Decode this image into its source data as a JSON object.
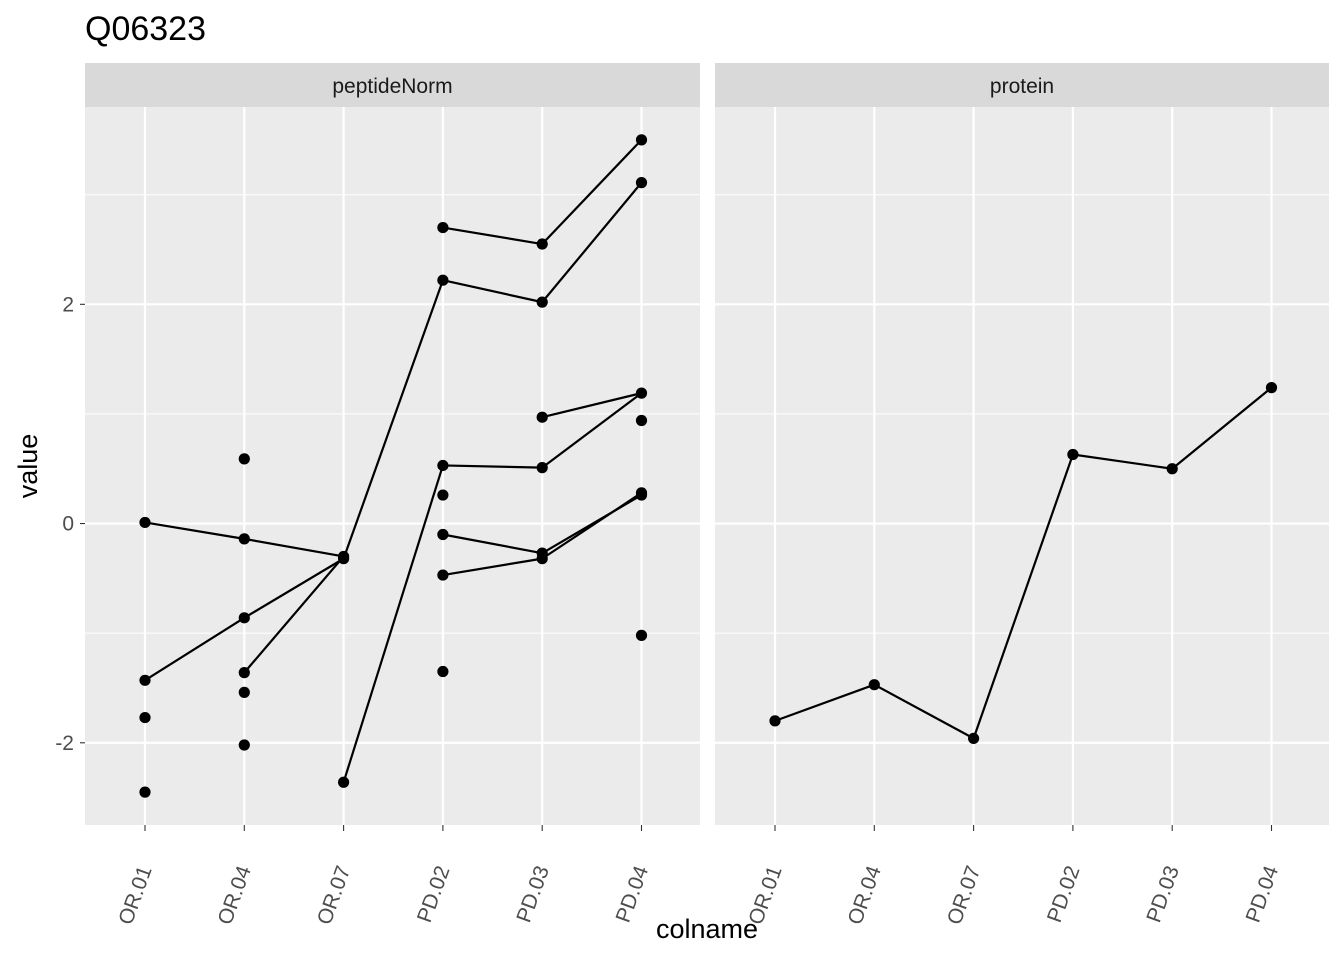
{
  "chart_data": {
    "type": "line",
    "title": "Q06323",
    "xlabel": "colname",
    "ylabel": "value",
    "categories": [
      "OR.01",
      "OR.04",
      "OR.07",
      "PD.02",
      "PD.03",
      "PD.04"
    ],
    "ylim": [
      -2.75,
      3.8
    ],
    "yticks": [
      -2,
      0,
      2
    ],
    "ytick_labels": [
      "-2",
      "0",
      "2"
    ],
    "grid": true,
    "colors": {
      "panel_bg": "#EBEBEB",
      "strip_bg": "#D9D9D9",
      "grid": "#FFFFFF",
      "series": "#000000",
      "tick": "#333333"
    },
    "panels": [
      {
        "label": "peptideNorm",
        "series": [
          {
            "values": [
              null,
              null,
              null,
              2.7,
              2.55,
              3.5
            ]
          },
          {
            "values": [
              null,
              null,
              null,
              2.22,
              2.02,
              3.11
            ]
          },
          {
            "values": [
              null,
              null,
              null,
              null,
              0.97,
              1.19
            ]
          },
          {
            "values": [
              null,
              null,
              null,
              0.53,
              0.51,
              1.19
            ]
          },
          {
            "values": [
              null,
              null,
              null,
              -0.1,
              -0.27,
              0.26
            ]
          },
          {
            "values": [
              null,
              null,
              null,
              -0.47,
              -0.32,
              0.28
            ]
          },
          {
            "values": [
              0.01,
              -0.14,
              -0.3,
              null,
              null,
              null
            ]
          },
          {
            "values": [
              -1.43,
              -0.86,
              -0.32,
              2.22,
              null,
              null
            ]
          },
          {
            "values": [
              null,
              -1.36,
              -0.3,
              null,
              null,
              null
            ]
          },
          {
            "values": [
              null,
              null,
              -2.36,
              0.53,
              null,
              null
            ]
          }
        ],
        "points": [
          {
            "x": "OR.01",
            "y": 0.01
          },
          {
            "x": "OR.01",
            "y": -1.43
          },
          {
            "x": "OR.01",
            "y": -1.77
          },
          {
            "x": "OR.01",
            "y": -2.45
          },
          {
            "x": "OR.04",
            "y": 0.59
          },
          {
            "x": "OR.04",
            "y": -0.14
          },
          {
            "x": "OR.04",
            "y": -0.86
          },
          {
            "x": "OR.04",
            "y": -1.36
          },
          {
            "x": "OR.04",
            "y": -1.54
          },
          {
            "x": "OR.04",
            "y": -2.02
          },
          {
            "x": "OR.07",
            "y": -0.3
          },
          {
            "x": "OR.07",
            "y": -0.32
          },
          {
            "x": "OR.07",
            "y": -2.36
          },
          {
            "x": "PD.02",
            "y": 2.7
          },
          {
            "x": "PD.02",
            "y": 2.22
          },
          {
            "x": "PD.02",
            "y": 0.53
          },
          {
            "x": "PD.02",
            "y": 0.26
          },
          {
            "x": "PD.02",
            "y": -0.1
          },
          {
            "x": "PD.02",
            "y": -0.47
          },
          {
            "x": "PD.02",
            "y": -1.35
          },
          {
            "x": "PD.03",
            "y": 2.55
          },
          {
            "x": "PD.03",
            "y": 2.02
          },
          {
            "x": "PD.03",
            "y": 0.97
          },
          {
            "x": "PD.03",
            "y": 0.51
          },
          {
            "x": "PD.03",
            "y": -0.27
          },
          {
            "x": "PD.03",
            "y": -0.32
          },
          {
            "x": "PD.04",
            "y": 3.5
          },
          {
            "x": "PD.04",
            "y": 3.11
          },
          {
            "x": "PD.04",
            "y": 1.19
          },
          {
            "x": "PD.04",
            "y": 0.94
          },
          {
            "x": "PD.04",
            "y": 0.28
          },
          {
            "x": "PD.04",
            "y": 0.26
          },
          {
            "x": "PD.04",
            "y": -1.02
          }
        ]
      },
      {
        "label": "protein",
        "series": [
          {
            "values": [
              -1.8,
              -1.47,
              -1.96,
              0.63,
              0.5,
              1.24
            ]
          }
        ],
        "points": [
          {
            "x": "OR.01",
            "y": -1.8
          },
          {
            "x": "OR.04",
            "y": -1.47
          },
          {
            "x": "OR.07",
            "y": -1.96
          },
          {
            "x": "PD.02",
            "y": 0.63
          },
          {
            "x": "PD.03",
            "y": 0.5
          },
          {
            "x": "PD.04",
            "y": 1.24
          }
        ]
      }
    ]
  }
}
